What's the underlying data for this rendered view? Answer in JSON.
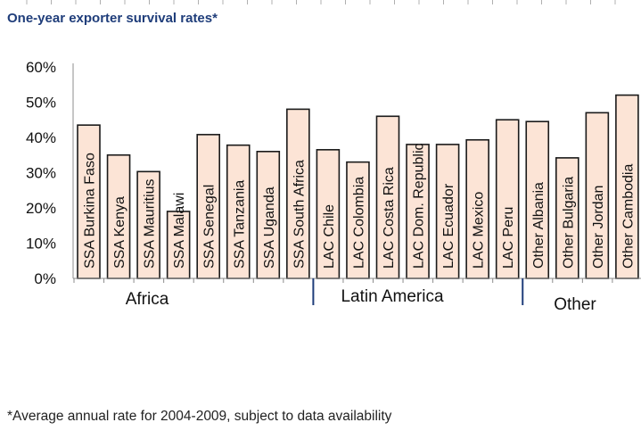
{
  "chart_data": {
    "type": "bar",
    "title": "One-year exporter survival rates*",
    "footnote": "*Average annual rate for 2004-2009, subject to data availability",
    "xlabel": "",
    "ylabel": "",
    "ylim": [
      0,
      60
    ],
    "yticks": [
      "0%",
      "10%",
      "20%",
      "30%",
      "40%",
      "50%",
      "60%"
    ],
    "grid": false,
    "categories": [
      "SSA Burkina Faso",
      "SSA Kenya",
      "SSA Mauritius",
      "SSA Malawi",
      "SSA Senegal",
      "SSA Tanzania",
      "SSA Uganda",
      "SSA South Africa",
      "LAC Chile",
      "LAC Colombia",
      "LAC Costa Rica",
      "LAC Dom. Republic",
      "LAC Ecuador",
      "LAC Mexico",
      "LAC Peru",
      "Other Albania",
      "Other Bulgaria",
      "Other Jordan",
      "Other Cambodia"
    ],
    "values": [
      43.5,
      35,
      30.3,
      19,
      40.8,
      37.8,
      36,
      48,
      36.5,
      33,
      46,
      38,
      38,
      39.3,
      45,
      44.5,
      34.2,
      47,
      52
    ],
    "groups": [
      "Africa",
      "Latin America",
      "Other"
    ],
    "colors": {
      "bar_fill": "#fce4d6",
      "bar_stroke": "#1a1a1a",
      "title": "#1f3d7a",
      "axis": "#8c8c8c"
    }
  }
}
